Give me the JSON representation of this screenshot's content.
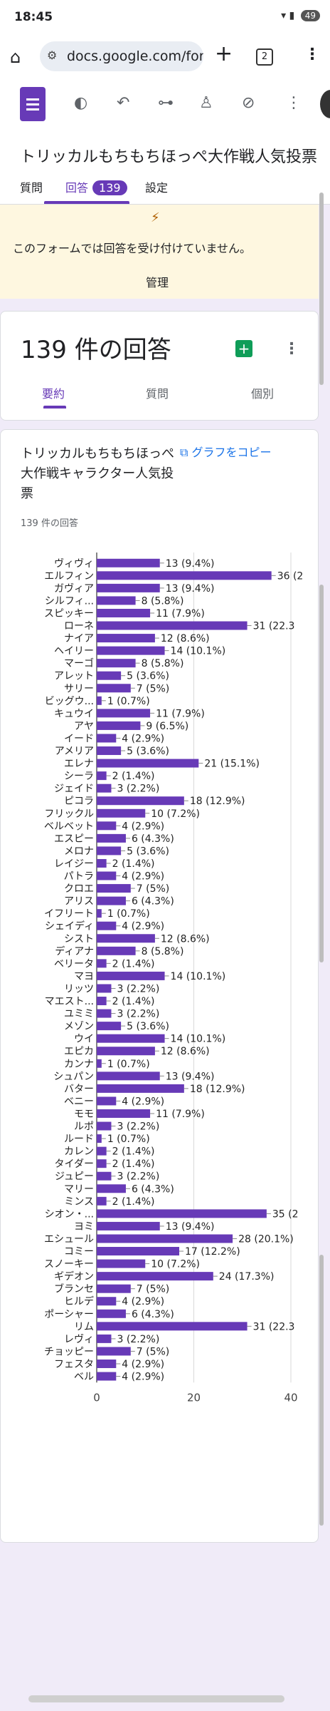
{
  "status_bar": {
    "time": "18:45",
    "battery": "49"
  },
  "browser": {
    "url": "docs.google.com/for",
    "tab_count": "2"
  },
  "form": {
    "title": "トリッカルもちもちほっぺ大作戦人気投票",
    "tabs": {
      "questions": "質問",
      "responses": "回答",
      "responses_badge": "139",
      "settings": "設定"
    }
  },
  "notice": {
    "text": "このフォームでは回答を受け付けていません。",
    "manage": "管理"
  },
  "responses": {
    "count": "139 件の回答",
    "tabs": {
      "summary": "要約",
      "question": "質問",
      "individual": "個別"
    }
  },
  "question": {
    "title": "トリッカルもちもちほっぺ大作戦キャラクター人気投票",
    "copy_chart": "グラフをコピー",
    "sub": "139 件の回答"
  },
  "colors": {
    "accent": "#673ab7",
    "bar": "#673ab7",
    "notice_bg": "#fef7e0",
    "page_bg": "#f0ebf8"
  },
  "chart_data": {
    "type": "bar",
    "orientation": "horizontal",
    "xlim": [
      0,
      40
    ],
    "xticks": [
      "0",
      "20",
      "40"
    ],
    "grid": true,
    "categories": [
      "ヴィヴィ",
      "エルフィン",
      "ガヴィア",
      "シルフィ...",
      "スピッキー",
      "ローネ",
      "ナイア",
      "ヘイリー",
      "マーゴ",
      "アレット",
      "サリー",
      "ビッグウ...",
      "キュウイ",
      "アヤ",
      "イード",
      "アメリア",
      "エレナ",
      "シーラ",
      "ジェイド",
      "ピコラ",
      "フリックル",
      "ベルベット",
      "エスピー",
      "メロナ",
      "レイジー",
      "パトラ",
      "クロエ",
      "アリス",
      "イフリート",
      "シェイディ",
      "シスト",
      "ディアナ",
      "ベリータ",
      "マヨ",
      "リッツ",
      "マエスト...",
      "ユミミ",
      "メゾン",
      "ウイ",
      "エピカ",
      "カンナ",
      "シュパン",
      "バター",
      "ベニー",
      "モモ",
      "ルポ",
      "ルード",
      "カレン",
      "タイダー",
      "ジュピー",
      "マリー",
      "ミンス",
      "シオン・...",
      "ヨミ",
      "エシュール",
      "コミー",
      "スノーキー",
      "ギデオン",
      "ブランセ",
      "ヒルデ",
      "ポーシャー",
      "リム",
      "レヴィ",
      "チョッピー",
      "フェスタ",
      "ベル"
    ],
    "values": [
      13,
      36,
      13,
      8,
      11,
      31,
      12,
      14,
      8,
      5,
      7,
      1,
      11,
      9,
      4,
      5,
      21,
      2,
      3,
      18,
      10,
      4,
      6,
      5,
      2,
      4,
      7,
      6,
      1,
      4,
      12,
      8,
      2,
      14,
      3,
      2,
      3,
      5,
      14,
      12,
      1,
      13,
      18,
      4,
      11,
      3,
      1,
      2,
      2,
      3,
      6,
      2,
      35,
      13,
      28,
      17,
      10,
      24,
      7,
      4,
      6,
      31,
      3,
      7,
      4,
      4
    ],
    "labels": [
      "13 (9.4%)",
      "36 (2",
      "13 (9.4%)",
      "8 (5.8%)",
      "11 (7.9%)",
      "31 (22.3",
      "12 (8.6%)",
      "14 (10.1%)",
      "8 (5.8%)",
      "5 (3.6%)",
      "7 (5%)",
      "1 (0.7%)",
      "11 (7.9%)",
      "9 (6.5%)",
      "4 (2.9%)",
      "5 (3.6%)",
      "21 (15.1%)",
      "2 (1.4%)",
      "3 (2.2%)",
      "18 (12.9%)",
      "10 (7.2%)",
      "4 (2.9%)",
      "6 (4.3%)",
      "5 (3.6%)",
      "2 (1.4%)",
      "4 (2.9%)",
      "7 (5%)",
      "6 (4.3%)",
      "1 (0.7%)",
      "4 (2.9%)",
      "12 (8.6%)",
      "8 (5.8%)",
      "2 (1.4%)",
      "14 (10.1%)",
      "3 (2.2%)",
      "2 (1.4%)",
      "3 (2.2%)",
      "5 (3.6%)",
      "14 (10.1%)",
      "12 (8.6%)",
      "1 (0.7%)",
      "13 (9.4%)",
      "18 (12.9%)",
      "4 (2.9%)",
      "11 (7.9%)",
      "3 (2.2%)",
      "1 (0.7%)",
      "2 (1.4%)",
      "2 (1.4%)",
      "3 (2.2%)",
      "6 (4.3%)",
      "2 (1.4%)",
      "35 (2",
      "13 (9.4%)",
      "28 (20.1%)",
      "17 (12.2%)",
      "10 (7.2%)",
      "24 (17.3%)",
      "7 (5%)",
      "4 (2.9%)",
      "6 (4.3%)",
      "31 (22.3",
      "3 (2.2%)",
      "7 (5%)",
      "4 (2.9%)",
      "4 (2.9%)"
    ]
  }
}
